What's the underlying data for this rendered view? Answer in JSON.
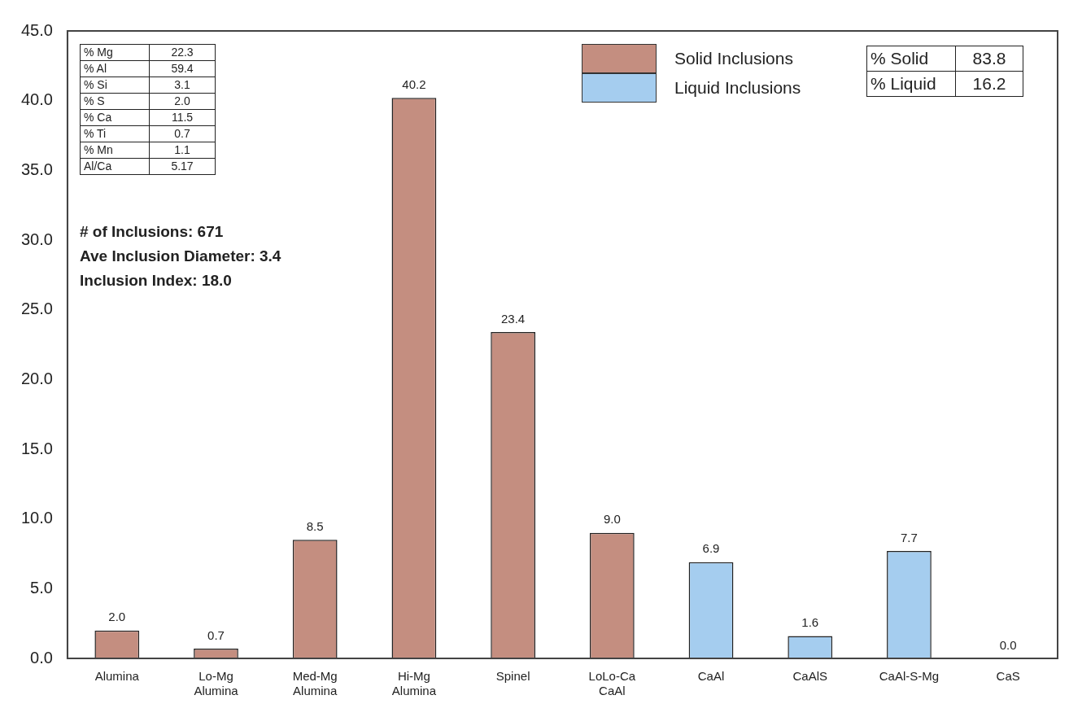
{
  "chart_data": {
    "type": "bar",
    "categories": [
      "Alumina",
      "Lo-Mg Alumina",
      "Med-Mg Alumina",
      "Hi-Mg Alumina",
      "Spinel",
      "LoLo-Ca CaAl",
      "CaAl",
      "CaAlS",
      "CaAl-S-Mg",
      "CaS"
    ],
    "series": [
      {
        "name": "Solid Inclusions",
        "color": "#c48e80",
        "values": [
          2.0,
          0.7,
          8.5,
          40.2,
          23.4,
          9.0,
          null,
          null,
          null,
          null
        ],
        "value_labels": [
          "2.0",
          "0.7",
          "8.5",
          "40.2",
          "23.4",
          "9.0",
          null,
          null,
          null,
          null
        ]
      },
      {
        "name": "Liquid Inclusions",
        "color": "#a5cdef",
        "values": [
          null,
          null,
          null,
          null,
          null,
          null,
          6.9,
          1.6,
          7.7,
          0.0
        ],
        "value_labels": [
          null,
          null,
          null,
          null,
          null,
          null,
          "6.9",
          "1.6",
          "7.7",
          "0.0"
        ]
      }
    ],
    "ylim": [
      0,
      45
    ],
    "yticks": [
      {
        "value": 0,
        "label": "0.0"
      },
      {
        "value": 5,
        "label": "5.0"
      },
      {
        "value": 10,
        "label": "10.0"
      },
      {
        "value": 15,
        "label": "15.0"
      },
      {
        "value": 20,
        "label": "20.0"
      },
      {
        "value": 25,
        "label": "25.0"
      },
      {
        "value": 30,
        "label": "30.0"
      },
      {
        "value": 35,
        "label": "35.0"
      },
      {
        "value": 40,
        "label": "40.0"
      },
      {
        "value": 45,
        "label": "45.0"
      }
    ],
    "grid": false,
    "legend": "top right",
    "annotations": [
      "% Mg",
      "22.3",
      "% Al",
      "59.4",
      "% Si",
      "3.1",
      "% S",
      "2.0",
      "% Ca",
      "11.5",
      "% Ti",
      "0.7",
      "% Mn",
      "1.1",
      "Al/Ca",
      "5.17",
      "# of Inclusions: 671",
      "Ave Inclusion Diameter: 3.4",
      "Inclusion Index: 18.0",
      "% Solid",
      "83.8",
      "% Liquid",
      "16.2"
    ]
  }
}
